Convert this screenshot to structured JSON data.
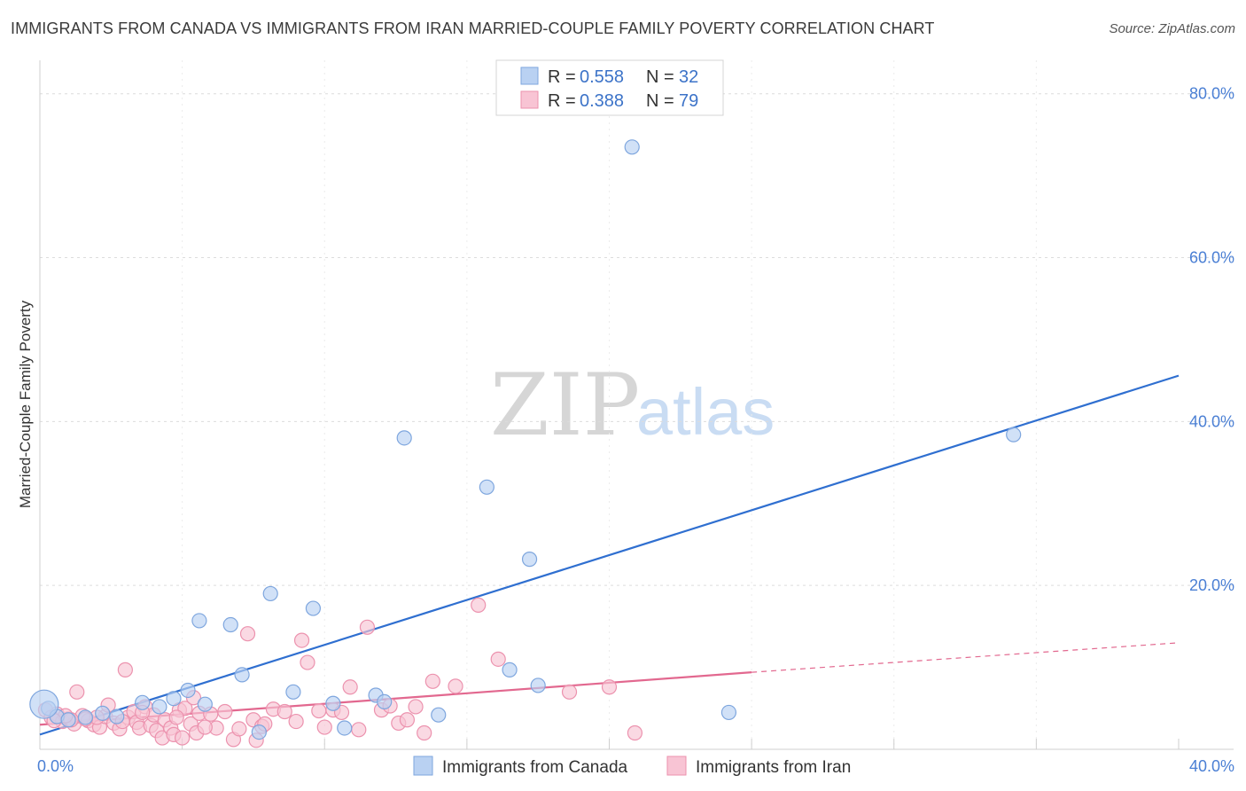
{
  "title": "IMMIGRANTS FROM CANADA VS IMMIGRANTS FROM IRAN MARRIED-COUPLE FAMILY POVERTY CORRELATION CHART",
  "source": "Source: ZipAtlas.com",
  "watermark": {
    "zip": "ZIP",
    "atlas": "atlas"
  },
  "colors": {
    "canada_fill": "#b9d1f2",
    "canada_stroke": "#7ea6de",
    "canada_line": "#2f6fd0",
    "iran_fill": "#f8c4d4",
    "iran_stroke": "#ec92ae",
    "iran_line": "#e2688f",
    "grid": "#dcdcdc",
    "tick": "#4a7fd4"
  },
  "legend": {
    "r_label": "R =",
    "n_label": "N =",
    "canada": {
      "r": "0.558",
      "n": "32"
    },
    "iran": {
      "r": "0.388",
      "n": "79"
    }
  },
  "chart_data": {
    "type": "scatter",
    "title": "IMMIGRANTS FROM CANADA VS IMMIGRANTS FROM IRAN MARRIED-COUPLE FAMILY POVERTY CORRELATION CHART",
    "xlabel": "",
    "ylabel": "Married-Couple Family Poverty",
    "xlim": [
      0,
      40
    ],
    "ylim": [
      0,
      83
    ],
    "x_tick_labels": [
      "0.0%",
      "40.0%"
    ],
    "y_ticks": [
      20,
      40,
      60,
      80
    ],
    "y_tick_labels": [
      "20.0%",
      "40.0%",
      "60.0%",
      "80.0%"
    ],
    "series": [
      {
        "name": "Immigrants from Canada",
        "key": "canada",
        "points": [
          [
            0.3,
            5.0
          ],
          [
            0.6,
            4.0
          ],
          [
            1.0,
            3.6
          ],
          [
            1.6,
            3.9
          ],
          [
            2.2,
            4.4
          ],
          [
            3.6,
            5.7
          ],
          [
            4.2,
            5.2
          ],
          [
            4.7,
            6.2
          ],
          [
            5.2,
            7.2
          ],
          [
            5.8,
            5.5
          ],
          [
            5.6,
            15.7
          ],
          [
            6.7,
            15.2
          ],
          [
            7.1,
            9.1
          ],
          [
            7.7,
            2.1
          ],
          [
            8.1,
            19.0
          ],
          [
            8.9,
            7.0
          ],
          [
            9.6,
            17.2
          ],
          [
            10.3,
            5.6
          ],
          [
            10.7,
            2.6
          ],
          [
            11.8,
            6.6
          ],
          [
            12.1,
            5.8
          ],
          [
            12.8,
            38.0
          ],
          [
            14.0,
            4.2
          ],
          [
            15.7,
            32.0
          ],
          [
            16.5,
            9.7
          ],
          [
            17.2,
            23.2
          ],
          [
            17.5,
            7.8
          ],
          [
            20.8,
            73.5
          ],
          [
            24.2,
            4.5
          ],
          [
            34.2,
            38.4
          ],
          [
            0.15,
            5.5
          ],
          [
            2.7,
            4.0
          ]
        ],
        "trend": {
          "x": [
            0,
            40
          ],
          "y": [
            1.8,
            45.6
          ]
        }
      },
      {
        "name": "Immigrants from Iran",
        "key": "iran",
        "points": [
          [
            0.2,
            4.8
          ],
          [
            0.4,
            3.9
          ],
          [
            0.6,
            4.3
          ],
          [
            0.8,
            3.4
          ],
          [
            1.0,
            3.7
          ],
          [
            1.2,
            3.1
          ],
          [
            1.3,
            7.0
          ],
          [
            1.5,
            4.1
          ],
          [
            1.7,
            3.5
          ],
          [
            1.9,
            3.0
          ],
          [
            2.1,
            2.7
          ],
          [
            2.3,
            4.0
          ],
          [
            2.4,
            5.4
          ],
          [
            2.6,
            3.2
          ],
          [
            2.8,
            2.5
          ],
          [
            3.0,
            9.7
          ],
          [
            3.1,
            3.9
          ],
          [
            3.3,
            4.6
          ],
          [
            3.4,
            3.3
          ],
          [
            3.5,
            2.6
          ],
          [
            3.7,
            5.2
          ],
          [
            3.9,
            2.9
          ],
          [
            4.0,
            4.2
          ],
          [
            4.1,
            2.3
          ],
          [
            4.3,
            1.4
          ],
          [
            4.4,
            3.6
          ],
          [
            4.6,
            2.6
          ],
          [
            4.7,
            1.8
          ],
          [
            4.9,
            4.8
          ],
          [
            5.0,
            1.4
          ],
          [
            5.1,
            5.0
          ],
          [
            5.3,
            3.1
          ],
          [
            5.4,
            6.3
          ],
          [
            5.5,
            2.0
          ],
          [
            5.6,
            4.4
          ],
          [
            6.2,
            2.6
          ],
          [
            6.5,
            4.6
          ],
          [
            6.8,
            1.2
          ],
          [
            7.0,
            2.5
          ],
          [
            7.3,
            14.1
          ],
          [
            7.5,
            3.6
          ],
          [
            7.6,
            1.1
          ],
          [
            7.8,
            2.8
          ],
          [
            8.2,
            4.9
          ],
          [
            8.6,
            4.6
          ],
          [
            9.2,
            13.3
          ],
          [
            9.4,
            10.6
          ],
          [
            9.8,
            4.7
          ],
          [
            10.0,
            2.7
          ],
          [
            10.3,
            4.8
          ],
          [
            10.6,
            4.5
          ],
          [
            10.9,
            7.6
          ],
          [
            11.2,
            2.4
          ],
          [
            11.5,
            14.9
          ],
          [
            12.0,
            4.8
          ],
          [
            12.3,
            5.3
          ],
          [
            12.6,
            3.2
          ],
          [
            13.2,
            5.2
          ],
          [
            13.5,
            2.0
          ],
          [
            13.8,
            8.3
          ],
          [
            14.6,
            7.7
          ],
          [
            15.4,
            17.6
          ],
          [
            16.1,
            11.0
          ],
          [
            18.6,
            7.0
          ],
          [
            20.0,
            7.6
          ],
          [
            20.9,
            2.0
          ],
          [
            1.1,
            3.6
          ],
          [
            2.0,
            3.9
          ],
          [
            0.9,
            4.1
          ],
          [
            4.8,
            3.9
          ],
          [
            6.0,
            4.3
          ],
          [
            3.6,
            4.5
          ],
          [
            0.5,
            3.5
          ],
          [
            1.6,
            3.7
          ],
          [
            2.9,
            3.4
          ],
          [
            5.8,
            2.7
          ],
          [
            7.9,
            3.1
          ],
          [
            9.0,
            3.4
          ],
          [
            12.9,
            3.6
          ]
        ],
        "trend": {
          "x": [
            0,
            25
          ],
          "y": [
            3.0,
            9.4
          ]
        },
        "trend_dashed": {
          "x": [
            25,
            40
          ],
          "y": [
            9.4,
            13.0
          ]
        }
      }
    ]
  },
  "bottom_legend": [
    {
      "key": "canada",
      "label": "Immigrants from Canada"
    },
    {
      "key": "iran",
      "label": "Immigrants from Iran"
    }
  ]
}
